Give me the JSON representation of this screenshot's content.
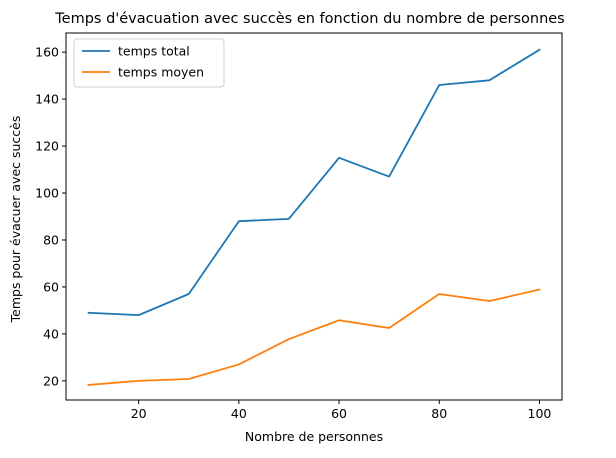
{
  "chart_data": {
    "type": "line",
    "title": "Temps d'évacuation avec succès en fonction du nombre de personnes",
    "xlabel": "Nombre de personnes",
    "ylabel": "Temps pour évacuer avec succès",
    "x": [
      10,
      20,
      30,
      40,
      50,
      60,
      70,
      80,
      90,
      100
    ],
    "xlim": [
      5.5,
      104.5
    ],
    "ylim": [
      11.85,
      168.15
    ],
    "xticks": [
      20,
      40,
      60,
      80,
      100
    ],
    "yticks": [
      20,
      40,
      60,
      80,
      100,
      120,
      140,
      160
    ],
    "grid": false,
    "legend": "top-left",
    "series": [
      {
        "name": "temps total",
        "color": "#1f77b4",
        "values": [
          49,
          48,
          57,
          88,
          89,
          115,
          107,
          146,
          148,
          161
        ]
      },
      {
        "name": "temps moyen",
        "color": "#ff7f0e",
        "values": [
          18.3,
          20,
          20.8,
          27,
          37.8,
          45.8,
          42.5,
          57,
          54,
          58.9
        ]
      }
    ]
  }
}
